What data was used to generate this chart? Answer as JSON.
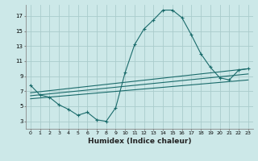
{
  "xlabel": "Humidex (Indice chaleur)",
  "ylabel": "",
  "background_color": "#cce8e8",
  "grid_color": "#aacccc",
  "line_color": "#1a6b6b",
  "xlim": [
    -0.5,
    23.5
  ],
  "ylim": [
    2,
    18.5
  ],
  "xticks": [
    0,
    1,
    2,
    3,
    4,
    5,
    6,
    7,
    8,
    9,
    10,
    11,
    12,
    13,
    14,
    15,
    16,
    17,
    18,
    19,
    20,
    21,
    22,
    23
  ],
  "yticks": [
    3,
    5,
    7,
    9,
    11,
    13,
    15,
    17
  ],
  "series": [
    {
      "x": [
        0,
        1,
        2,
        3,
        4,
        5,
        6,
        7,
        8,
        9,
        10,
        11,
        12,
        13,
        14,
        15,
        16,
        17,
        18,
        19,
        20,
        21,
        22,
        23
      ],
      "y": [
        7.8,
        6.5,
        6.2,
        5.2,
        4.6,
        3.8,
        4.2,
        3.2,
        3.0,
        4.8,
        9.5,
        13.2,
        15.3,
        16.5,
        17.8,
        17.8,
        16.8,
        14.5,
        12.0,
        10.2,
        8.8,
        8.5,
        9.8,
        10.0
      ]
    },
    {
      "x": [
        0,
        23
      ],
      "y": [
        6.8,
        10.0
      ]
    },
    {
      "x": [
        0,
        23
      ],
      "y": [
        6.4,
        9.3
      ]
    },
    {
      "x": [
        0,
        23
      ],
      "y": [
        6.0,
        8.5
      ]
    }
  ]
}
